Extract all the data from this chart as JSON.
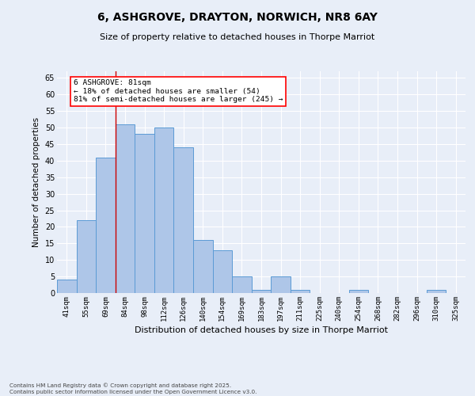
{
  "title_line1": "6, ASHGROVE, DRAYTON, NORWICH, NR8 6AY",
  "title_line2": "Size of property relative to detached houses in Thorpe Marriot",
  "xlabel": "Distribution of detached houses by size in Thorpe Marriot",
  "ylabel": "Number of detached properties",
  "categories": [
    "41sqm",
    "55sqm",
    "69sqm",
    "84sqm",
    "98sqm",
    "112sqm",
    "126sqm",
    "140sqm",
    "154sqm",
    "169sqm",
    "183sqm",
    "197sqm",
    "211sqm",
    "225sqm",
    "240sqm",
    "254sqm",
    "268sqm",
    "282sqm",
    "296sqm",
    "310sqm",
    "325sqm"
  ],
  "values": [
    4,
    22,
    41,
    51,
    48,
    50,
    44,
    16,
    13,
    5,
    1,
    5,
    1,
    0,
    0,
    1,
    0,
    0,
    0,
    1,
    0
  ],
  "bar_color": "#aec6e8",
  "bar_edge_color": "#5b9bd5",
  "background_color": "#e8eef8",
  "grid_color": "#ffffff",
  "vline_color": "#cc0000",
  "vline_x_index": 3,
  "annotation_text": "6 ASHGROVE: 81sqm\n← 18% of detached houses are smaller (54)\n81% of semi-detached houses are larger (245) →",
  "footer_text": "Contains HM Land Registry data © Crown copyright and database right 2025.\nContains public sector information licensed under the Open Government Licence v3.0.",
  "ylim": [
    0,
    67
  ],
  "yticks": [
    0,
    5,
    10,
    15,
    20,
    25,
    30,
    35,
    40,
    45,
    50,
    55,
    60,
    65
  ]
}
